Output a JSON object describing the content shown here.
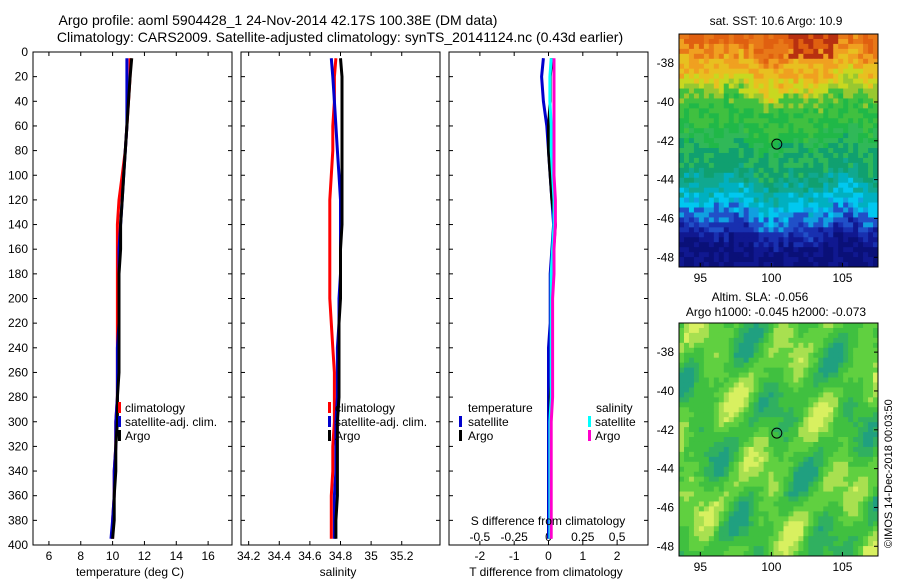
{
  "header": {
    "title_line1": "Argo profile: aoml 5904428_1 24-Nov-2014 42.17S 100.38E (DM data)",
    "title_line2": "Climatology: CARS2009. Satellite-adjusted climatology: synTS_20141124.nc (0.43d earlier)"
  },
  "colors": {
    "climatology": "#ff0000",
    "satellite_adj": "#0000cc",
    "argo": "#000000",
    "sal_satellite": "#00ffff",
    "sal_argo": "#ff00cc"
  },
  "depth_axis": {
    "ticks": [
      0,
      20,
      40,
      60,
      80,
      100,
      120,
      140,
      160,
      180,
      200,
      220,
      240,
      260,
      280,
      300,
      320,
      340,
      360,
      380,
      400
    ],
    "ylim": [
      0,
      400
    ]
  },
  "chart_data": [
    {
      "type": "line",
      "id": "temperature",
      "xlabel": "temperature (deg C)",
      "ylabel": "",
      "xlim": [
        5,
        17.5
      ],
      "ylim": [
        400,
        0
      ],
      "x_ticks": [
        6,
        8,
        10,
        12,
        14,
        16
      ],
      "x_tick_labels": [
        "6",
        "8",
        "10",
        "12",
        "14",
        "16"
      ],
      "legend": {
        "position": "lower-right",
        "entries": [
          "climatology",
          "satellite-adj. clim.",
          "Argo"
        ]
      },
      "series": [
        {
          "name": "climatology",
          "color_key": "climatology",
          "depth": [
            5,
            20,
            40,
            60,
            80,
            100,
            120,
            140,
            160,
            180,
            200,
            220,
            240,
            260,
            280,
            300,
            320,
            340,
            360,
            380,
            395
          ],
          "values": [
            11.1,
            11.1,
            11.0,
            10.9,
            10.8,
            10.6,
            10.4,
            10.3,
            10.3,
            10.3,
            10.3,
            10.3,
            10.3,
            10.3,
            10.3,
            10.2,
            10.2,
            10.1,
            10.1,
            10.0,
            10.0
          ]
        },
        {
          "name": "satellite-adj. clim.",
          "color_key": "satellite_adj",
          "depth": [
            5,
            20,
            40,
            60,
            80,
            100,
            120,
            140,
            160,
            180,
            200,
            220,
            240,
            260,
            280,
            300,
            320,
            340,
            360,
            380,
            395
          ],
          "values": [
            10.9,
            10.9,
            10.9,
            10.9,
            10.8,
            10.7,
            10.6,
            10.5,
            10.4,
            10.4,
            10.4,
            10.4,
            10.3,
            10.3,
            10.3,
            10.2,
            10.2,
            10.1,
            10.1,
            10.0,
            9.9
          ]
        },
        {
          "name": "Argo",
          "color_key": "argo",
          "depth": [
            5,
            20,
            40,
            60,
            80,
            100,
            120,
            140,
            160,
            180,
            200,
            220,
            240,
            260,
            280,
            300,
            320,
            340,
            360,
            380,
            395
          ],
          "values": [
            11.2,
            11.1,
            11.0,
            10.9,
            10.8,
            10.7,
            10.6,
            10.5,
            10.5,
            10.4,
            10.4,
            10.4,
            10.4,
            10.4,
            10.3,
            10.3,
            10.2,
            10.2,
            10.1,
            10.1,
            10.0
          ]
        }
      ]
    },
    {
      "type": "line",
      "id": "salinity",
      "xlabel": "salinity",
      "ylabel": "",
      "xlim": [
        34.15,
        35.45
      ],
      "ylim": [
        400,
        0
      ],
      "x_ticks": [
        34.2,
        34.4,
        34.6,
        34.8,
        35.0,
        35.2
      ],
      "x_tick_labels": [
        "34.2",
        "34.4",
        "34.6",
        "34.8",
        "35",
        "35.2"
      ],
      "legend": {
        "position": "lower-right",
        "entries": [
          "climatology",
          "satellite-adj. clim.",
          "Argo"
        ]
      },
      "series": [
        {
          "name": "climatology",
          "color_key": "climatology",
          "depth": [
            5,
            20,
            40,
            60,
            80,
            100,
            120,
            140,
            160,
            180,
            200,
            220,
            240,
            260,
            280,
            300,
            320,
            340,
            360,
            380,
            395
          ],
          "values": [
            34.77,
            34.76,
            34.76,
            34.75,
            34.75,
            34.74,
            34.73,
            34.73,
            34.73,
            34.73,
            34.73,
            34.74,
            34.75,
            34.76,
            34.76,
            34.76,
            34.75,
            34.75,
            34.74,
            34.74,
            34.74
          ]
        },
        {
          "name": "satellite-adj. clim.",
          "color_key": "satellite_adj",
          "depth": [
            5,
            20,
            40,
            60,
            80,
            100,
            120,
            140,
            160,
            180,
            200,
            220,
            240,
            260,
            280,
            300,
            320,
            340,
            360,
            380,
            395
          ],
          "values": [
            34.74,
            34.75,
            34.76,
            34.77,
            34.78,
            34.79,
            34.8,
            34.8,
            34.8,
            34.8,
            34.79,
            34.79,
            34.78,
            34.78,
            34.78,
            34.77,
            34.77,
            34.77,
            34.76,
            34.76,
            34.76
          ]
        },
        {
          "name": "Argo",
          "color_key": "argo",
          "depth": [
            5,
            20,
            40,
            60,
            80,
            100,
            120,
            140,
            160,
            180,
            200,
            220,
            240,
            260,
            280,
            300,
            320,
            340,
            360,
            380,
            395
          ],
          "values": [
            34.8,
            34.81,
            34.81,
            34.81,
            34.81,
            34.81,
            34.81,
            34.81,
            34.8,
            34.8,
            34.8,
            34.79,
            34.79,
            34.79,
            34.79,
            34.78,
            34.78,
            34.78,
            34.78,
            34.77,
            34.77
          ]
        }
      ]
    },
    {
      "type": "line",
      "id": "difference",
      "xlabel": "T difference from climatology",
      "xlabel_top": "S difference from climatology",
      "ylabel": "",
      "xlim": [
        -2.9,
        2.9
      ],
      "ylim": [
        400,
        0
      ],
      "x_ticks": [
        -2,
        -1,
        0,
        1,
        2
      ],
      "x_tick_labels": [
        "-2",
        "-1",
        "0",
        "1",
        "2"
      ],
      "s_ticks": [
        -0.5,
        -0.25,
        0,
        0.25,
        0.5
      ],
      "s_tick_labels": [
        "-0.5",
        "-0.25",
        "0",
        "0.25",
        "0.5"
      ],
      "s_scale": 4,
      "legend": {
        "position": "lower",
        "temperature_header": "temperature",
        "salinity_header": "salinity",
        "entries_temperature": [
          "satellite",
          "Argo"
        ],
        "entries_salinity": [
          "satellite",
          "Argo"
        ]
      },
      "series": [
        {
          "name": "T satellite",
          "color_key": "satellite_adj",
          "depth": [
            5,
            20,
            40,
            60,
            80,
            100,
            120,
            140,
            160,
            180,
            200,
            220,
            240,
            260,
            280,
            300,
            320,
            340,
            360,
            380,
            395
          ],
          "values": [
            -0.15,
            -0.2,
            -0.15,
            -0.05,
            0.0,
            0.05,
            0.1,
            0.15,
            0.1,
            0.05,
            0.05,
            0.05,
            0.0,
            0.0,
            0.0,
            0.0,
            0.0,
            0.0,
            0.0,
            0.0,
            0.0
          ]
        },
        {
          "name": "T Argo",
          "color_key": "argo",
          "depth": [
            5,
            20,
            40,
            60,
            80,
            100,
            120,
            140,
            160,
            180,
            200,
            220,
            240,
            260,
            280,
            300,
            320,
            340,
            360,
            380,
            395
          ],
          "values": [
            0.1,
            0.05,
            0.05,
            0.0,
            0.0,
            0.05,
            0.1,
            0.2,
            0.15,
            0.1,
            0.1,
            0.1,
            0.1,
            0.1,
            0.05,
            0.05,
            0.05,
            0.05,
            0.05,
            0.05,
            0.05
          ]
        },
        {
          "name": "S satellite",
          "color_key": "sal_satellite",
          "depth": [
            5,
            20,
            40,
            60,
            80,
            100,
            120,
            140,
            160,
            180,
            200,
            220,
            240,
            260,
            280,
            300,
            320,
            340,
            360,
            380,
            395
          ],
          "values": [
            0.02,
            0.01,
            0.01,
            0.02,
            0.02,
            0.03,
            0.04,
            0.04,
            0.03,
            0.02,
            0.02,
            0.02,
            0.02,
            0.02,
            0.02,
            0.01,
            0.01,
            0.01,
            0.01,
            0.01,
            0.01
          ]
        },
        {
          "name": "S Argo",
          "color_key": "sal_argo",
          "depth": [
            5,
            20,
            40,
            60,
            80,
            100,
            120,
            140,
            160,
            180,
            200,
            220,
            240,
            260,
            280,
            300,
            320,
            340,
            360,
            380,
            395
          ],
          "values": [
            0.04,
            0.04,
            0.04,
            0.04,
            0.04,
            0.04,
            0.05,
            0.05,
            0.04,
            0.04,
            0.03,
            0.03,
            0.03,
            0.03,
            0.03,
            0.02,
            0.02,
            0.02,
            0.02,
            0.02,
            0.02
          ]
        }
      ]
    }
  ],
  "maps": {
    "sst": {
      "title": "sat. SST: 10.6 Argo: 10.9",
      "y_ticks": [
        -38,
        -40,
        -42,
        -44,
        -46,
        -48
      ],
      "x_ticks": [
        95,
        100,
        105
      ],
      "float_lon": 100.38,
      "float_lat": -42.17,
      "lon_range": [
        93.5,
        107.5
      ],
      "lat_range": [
        -48.5,
        -36.5
      ]
    },
    "sla": {
      "title_line1": "Altim. SLA: -0.056",
      "title_line2": "Argo h1000: -0.045 h2000: -0.073",
      "y_ticks": [
        -38,
        -40,
        -42,
        -44,
        -46,
        -48
      ],
      "x_ticks": [
        95,
        100,
        105
      ],
      "float_lon": 100.38,
      "float_lat": -42.17,
      "lon_range": [
        93.5,
        107.5
      ],
      "lat_range": [
        -48.5,
        -36.5
      ]
    }
  },
  "footer": {
    "credit": "©IMOS 14-Dec-2018 00:03:50"
  }
}
